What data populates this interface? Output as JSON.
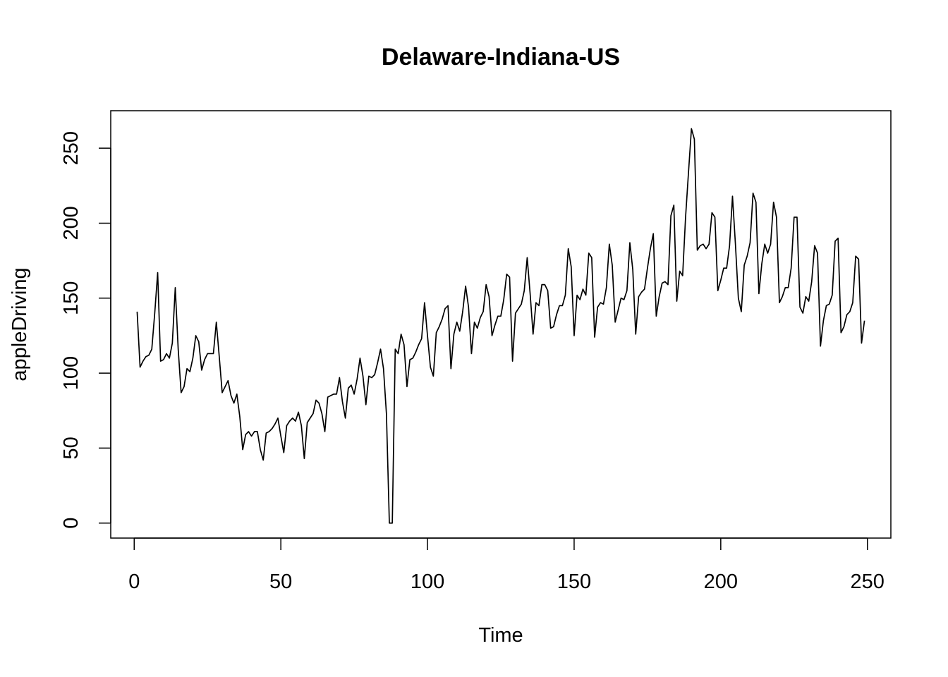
{
  "chart_data": {
    "type": "line",
    "title": "Delaware-Indiana-US",
    "xlabel": "Time",
    "ylabel": "appleDriving",
    "xlim": [
      -8,
      258
    ],
    "ylim": [
      -10,
      275
    ],
    "x_ticks": [
      0,
      50,
      100,
      150,
      200,
      250
    ],
    "y_ticks": [
      0,
      50,
      100,
      150,
      200,
      250
    ],
    "grid": false,
    "legend": "none",
    "line_color": "#000000",
    "series": [
      {
        "values": [
          141,
          104,
          108,
          111,
          112,
          116,
          140,
          167,
          108,
          109,
          113,
          110,
          120,
          157,
          116,
          87,
          91,
          103,
          101,
          110,
          125,
          121,
          102,
          109,
          113,
          113,
          113,
          134,
          111,
          87,
          91,
          95,
          85,
          80,
          86,
          71,
          49,
          59,
          61,
          58,
          61,
          61,
          49,
          42,
          60,
          61,
          63,
          66,
          70,
          58,
          47,
          65,
          68,
          70,
          68,
          74,
          65,
          43,
          67,
          70,
          73,
          82,
          80,
          73,
          61,
          84,
          85,
          86,
          86,
          97,
          81,
          70,
          90,
          92,
          86,
          96,
          110,
          98,
          79,
          98,
          97,
          99,
          107,
          116,
          103,
          73,
          0,
          0,
          116,
          113,
          126,
          119,
          91,
          109,
          110,
          114,
          119,
          123,
          147,
          125,
          104,
          98,
          127,
          131,
          136,
          143,
          145,
          103,
          126,
          134,
          128,
          141,
          158,
          144,
          113,
          134,
          130,
          137,
          141,
          159,
          151,
          125,
          132,
          138,
          138,
          149,
          166,
          164,
          108,
          140,
          143,
          146,
          155,
          177,
          153,
          126,
          147,
          145,
          159,
          159,
          155,
          130,
          131,
          139,
          145,
          145,
          152,
          183,
          171,
          125,
          152,
          149,
          156,
          152,
          180,
          177,
          124,
          144,
          147,
          146,
          157,
          186,
          172,
          134,
          142,
          150,
          149,
          155,
          187,
          169,
          126,
          151,
          154,
          156,
          170,
          183,
          193,
          138,
          151,
          160,
          161,
          159,
          205,
          212,
          148,
          168,
          165,
          204,
          234,
          263,
          256,
          182,
          185,
          186,
          183,
          186,
          207,
          204,
          155,
          162,
          170,
          170,
          185,
          218,
          186,
          150,
          141,
          172,
          178,
          187,
          220,
          214,
          153,
          173,
          186,
          180,
          186,
          214,
          204,
          147,
          151,
          157,
          157,
          170,
          204,
          204,
          144,
          140,
          151,
          148,
          161,
          185,
          180,
          118,
          135,
          145,
          146,
          152,
          188,
          190,
          127,
          131,
          139,
          141,
          147,
          178,
          176,
          120,
          135
        ]
      }
    ]
  }
}
